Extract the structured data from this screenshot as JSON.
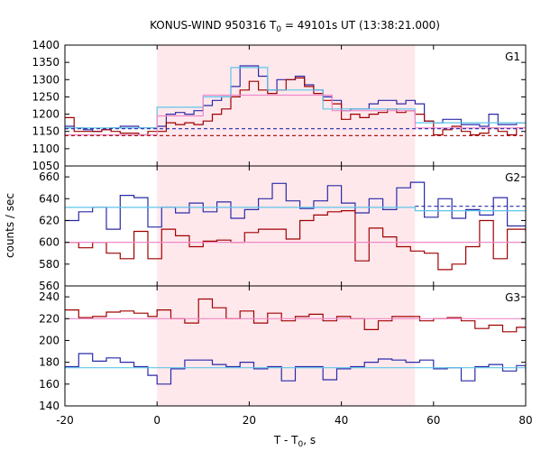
{
  "chart_data": {
    "type": "line",
    "title": {
      "main": "KONUS-WIND 950316 T",
      "sub": "0",
      "rest": " = 49101s UT (13:38:21.000)"
    },
    "xlabel": {
      "main": "T - T",
      "sub": "0",
      "rest": ", s"
    },
    "ylabel": "counts / sec",
    "xlim": [
      -20,
      80
    ],
    "x_ticks": [
      -20,
      0,
      20,
      40,
      60,
      80
    ],
    "highlight_interval": [
      0,
      56
    ],
    "colors": {
      "highlight": "#ffe8ec",
      "dark_red": "#a00000",
      "dark_blue": "#2a2aa8",
      "light_blue": "#5fc5e8",
      "pink": "#f08ac8"
    },
    "panels": [
      {
        "label": "G1",
        "ylim": [
          1050,
          1400
        ],
        "y_ticks": [
          1050,
          1100,
          1150,
          1200,
          1250,
          1300,
          1350,
          1400
        ],
        "series": [
          {
            "color": "dark_blue",
            "style": "step",
            "edges": [
              -20,
              -18,
              -16,
              -14,
              -12,
              -10,
              -8,
              -6,
              -4,
              -2,
              0,
              2,
              4,
              6,
              8,
              10,
              12,
              14,
              16,
              18,
              20,
              22,
              24,
              26,
              28,
              30,
              32,
              34,
              36,
              38,
              40,
              42,
              44,
              46,
              48,
              50,
              52,
              54,
              56,
              58,
              60,
              62,
              64,
              66,
              68,
              70,
              72,
              74,
              76,
              78,
              80
            ],
            "values": [
              1165,
              1160,
              1155,
              1150,
              1155,
              1160,
              1165,
              1165,
              1160,
              1160,
              1165,
              1200,
              1205,
              1200,
              1210,
              1225,
              1240,
              1250,
              1280,
              1340,
              1340,
              1310,
              1270,
              1300,
              1300,
              1310,
              1285,
              1270,
              1250,
              1240,
              1210,
              1215,
              1215,
              1230,
              1240,
              1240,
              1230,
              1240,
              1230,
              1180,
              1175,
              1185,
              1185,
              1170,
              1170,
              1165,
              1200,
              1170,
              1170,
              1175
            ]
          },
          {
            "color": "dark_red",
            "style": "step",
            "edges": [
              -20,
              -18,
              -16,
              -14,
              -12,
              -10,
              -8,
              -6,
              -4,
              -2,
              0,
              2,
              4,
              6,
              8,
              10,
              12,
              14,
              16,
              18,
              20,
              22,
              24,
              26,
              28,
              30,
              32,
              34,
              36,
              38,
              40,
              42,
              44,
              46,
              48,
              50,
              52,
              54,
              56,
              58,
              60,
              62,
              64,
              66,
              68,
              70,
              72,
              74,
              76,
              78,
              80
            ],
            "values": [
              1190,
              1150,
              1150,
              1150,
              1155,
              1150,
              1145,
              1145,
              1140,
              1150,
              1150,
              1175,
              1170,
              1175,
              1170,
              1180,
              1200,
              1215,
              1250,
              1270,
              1295,
              1270,
              1260,
              1270,
              1300,
              1305,
              1280,
              1260,
              1240,
              1230,
              1185,
              1200,
              1190,
              1200,
              1205,
              1215,
              1205,
              1210,
              1200,
              1180,
              1140,
              1155,
              1165,
              1150,
              1140,
              1145,
              1160,
              1150,
              1140,
              1160
            ]
          },
          {
            "color": "light_blue",
            "style": "step",
            "edges": [
              -20,
              0,
              10,
              16,
              24,
              36,
              56,
              80
            ],
            "values": [
              1160,
              1220,
              1250,
              1335,
              1270,
              1215,
              1175
            ]
          },
          {
            "color": "pink",
            "style": "step",
            "edges": [
              -20,
              0,
              10,
              20,
              30,
              38,
              56,
              80
            ],
            "values": [
              1140,
              1195,
              1255,
              1255,
              1255,
              1210,
              1160
            ]
          },
          {
            "color": "dark_blue",
            "style": "dashed",
            "edges": [
              -20,
              80
            ],
            "values": [
              1158
            ]
          },
          {
            "color": "dark_red",
            "style": "dashed",
            "edges": [
              -20,
              80
            ],
            "values": [
              1138
            ]
          }
        ]
      },
      {
        "label": "G2",
        "ylim": [
          560,
          670
        ],
        "y_ticks": [
          560,
          580,
          600,
          620,
          640,
          660
        ],
        "series": [
          {
            "color": "dark_blue",
            "style": "step",
            "edges": [
              -20,
              -17,
              -14,
              -11,
              -8,
              -5,
              -2,
              1,
              4,
              7,
              10,
              13,
              16,
              19,
              22,
              25,
              28,
              31,
              34,
              37,
              40,
              43,
              46,
              49,
              52,
              55,
              58,
              61,
              64,
              67,
              70,
              73,
              76,
              80
            ],
            "values": [
              620,
              628,
              632,
              612,
              643,
              641,
              614,
              632,
              627,
              636,
              628,
              637,
              622,
              630,
              640,
              654,
              638,
              631,
              638,
              652,
              636,
              627,
              640,
              630,
              650,
              655,
              623,
              640,
              622,
              630,
              625,
              641,
              615,
              610
            ]
          },
          {
            "color": "dark_red",
            "style": "step",
            "edges": [
              -20,
              -17,
              -14,
              -11,
              -8,
              -5,
              -2,
              1,
              4,
              7,
              10,
              13,
              16,
              19,
              22,
              25,
              28,
              31,
              34,
              37,
              40,
              43,
              46,
              49,
              52,
              55,
              58,
              61,
              64,
              67,
              70,
              73,
              76,
              80
            ],
            "values": [
              600,
              595,
              600,
              590,
              585,
              610,
              585,
              612,
              606,
              596,
              601,
              602,
              600,
              609,
              612,
              612,
              603,
              620,
              625,
              628,
              629,
              583,
              613,
              605,
              596,
              592,
              590,
              575,
              580,
              596,
              620,
              585,
              612,
              610
            ]
          },
          {
            "color": "light_blue",
            "style": "step",
            "edges": [
              -20,
              56,
              80
            ],
            "values": [
              632,
              629
            ]
          },
          {
            "color": "pink",
            "style": "line",
            "edges": [
              -20,
              80
            ],
            "values": [
              600
            ]
          },
          {
            "color": "dark_blue",
            "style": "dashed",
            "edges": [
              56,
              80
            ],
            "values": [
              633
            ]
          }
        ]
      },
      {
        "label": "G3",
        "ylim": [
          140,
          250
        ],
        "y_ticks": [
          140,
          160,
          180,
          200,
          220,
          240
        ],
        "series": [
          {
            "color": "dark_red",
            "style": "step",
            "edges": [
              -20,
              -17,
              -14,
              -11,
              -8,
              -5,
              -2,
              0,
              3,
              6,
              9,
              12,
              15,
              18,
              21,
              24,
              27,
              30,
              33,
              36,
              39,
              42,
              45,
              48,
              51,
              54,
              57,
              60,
              63,
              66,
              69,
              72,
              75,
              78,
              80
            ],
            "values": [
              228,
              221,
              222,
              226,
              227,
              225,
              222,
              228,
              220,
              216,
              238,
              230,
              220,
              227,
              216,
              225,
              218,
              222,
              224,
              218,
              222,
              220,
              210,
              218,
              222,
              222,
              218,
              220,
              221,
              218,
              211,
              214,
              208,
              212,
              211
            ]
          },
          {
            "color": "dark_blue",
            "style": "step",
            "edges": [
              -20,
              -17,
              -14,
              -11,
              -8,
              -5,
              -2,
              0,
              3,
              6,
              9,
              12,
              15,
              18,
              21,
              24,
              27,
              30,
              33,
              36,
              39,
              42,
              45,
              48,
              51,
              54,
              57,
              60,
              63,
              66,
              69,
              72,
              75,
              78,
              80
            ],
            "values": [
              176,
              188,
              181,
              184,
              180,
              176,
              168,
              160,
              174,
              182,
              182,
              178,
              176,
              180,
              174,
              176,
              163,
              176,
              176,
              164,
              174,
              176,
              180,
              183,
              182,
              180,
              182,
              174,
              175,
              163,
              176,
              178,
              172,
              177,
              170
            ]
          },
          {
            "color": "light_blue",
            "style": "line",
            "edges": [
              -20,
              80
            ],
            "values": [
              175
            ]
          },
          {
            "color": "pink",
            "style": "line",
            "edges": [
              -20,
              80
            ],
            "values": [
              220
            ]
          }
        ]
      }
    ]
  }
}
